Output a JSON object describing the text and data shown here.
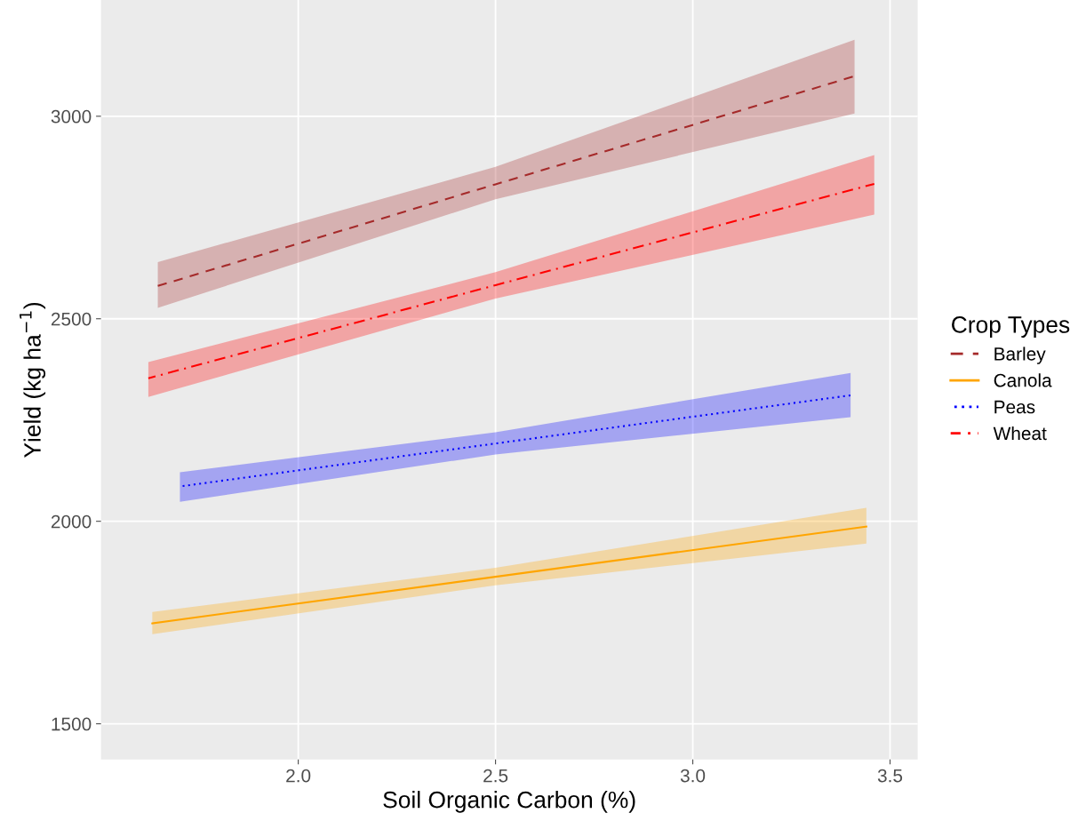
{
  "chart_data": {
    "type": "line",
    "xlabel": "Soil Organic Carbon (%)",
    "ylabel": "Yield (kg ha$^{−1}$)",
    "legend_title": "Crop Types",
    "legend": "right",
    "grid": true,
    "marker": "none",
    "xlim": [
      1.5,
      3.57
    ],
    "ylim": [
      1412,
      3287
    ],
    "xticks": [
      {
        "value": 2,
        "label": "2.0"
      },
      {
        "value": 2.5,
        "label": "2.5"
      },
      {
        "value": 3,
        "label": "3.0"
      },
      {
        "value": 3.5,
        "label": "3.5"
      }
    ],
    "yticks": [
      1500,
      2000,
      2500,
      3000
    ],
    "series": [
      {
        "name": "Barley",
        "color": "#a52a2a",
        "line_style": "dashed",
        "x": [
          1.644,
          2.5,
          3.41
        ],
        "values": [
          2581,
          2832,
          3099
        ],
        "lower": [
          2527,
          2795,
          3007
        ],
        "upper": [
          2640,
          2875,
          3189
        ]
      },
      {
        "name": "Canola",
        "color": "#ffa500",
        "line_style": "solid",
        "x": [
          1.63,
          2.5,
          3.44
        ],
        "values": [
          1748,
          1863,
          1987
        ],
        "lower": [
          1721,
          1842,
          1945
        ],
        "upper": [
          1776,
          1885,
          2033
        ]
      },
      {
        "name": "Peas",
        "color": "#0000ff",
        "line_style": "dotted",
        "x": [
          1.7,
          2.5,
          3.4
        ],
        "values": [
          2086,
          2192,
          2311
        ],
        "lower": [
          2048,
          2165,
          2257
        ],
        "upper": [
          2121,
          2220,
          2366
        ]
      },
      {
        "name": "Wheat",
        "color": "#ff0000",
        "line_style": "dashdot",
        "x": [
          1.62,
          2.5,
          3.46
        ],
        "values": [
          2353,
          2583,
          2833
        ],
        "lower": [
          2307,
          2550,
          2757
        ],
        "upper": [
          2393,
          2615,
          2904
        ]
      }
    ]
  }
}
